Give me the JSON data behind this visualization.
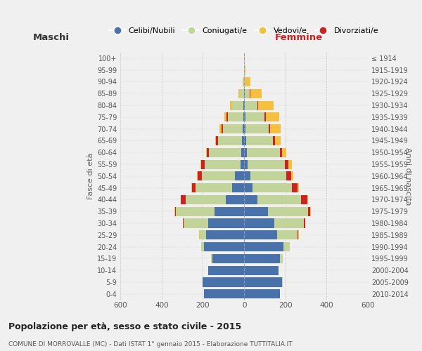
{
  "age_groups": [
    "0-4",
    "5-9",
    "10-14",
    "15-19",
    "20-24",
    "25-29",
    "30-34",
    "35-39",
    "40-44",
    "45-49",
    "50-54",
    "55-59",
    "60-64",
    "65-69",
    "70-74",
    "75-79",
    "80-84",
    "85-89",
    "90-94",
    "95-99",
    "100+"
  ],
  "birth_years": [
    "2010-2014",
    "2005-2009",
    "2000-2004",
    "1995-1999",
    "1990-1994",
    "1985-1989",
    "1980-1984",
    "1975-1979",
    "1970-1974",
    "1965-1969",
    "1960-1964",
    "1955-1959",
    "1950-1954",
    "1945-1949",
    "1940-1944",
    "1935-1939",
    "1930-1934",
    "1925-1929",
    "1920-1924",
    "1915-1919",
    "≤ 1914"
  ],
  "males": {
    "celibe": [
      195,
      200,
      175,
      155,
      195,
      185,
      175,
      145,
      90,
      60,
      45,
      18,
      15,
      10,
      8,
      5,
      3,
      2,
      0,
      0,
      0
    ],
    "coniugato": [
      0,
      2,
      0,
      5,
      15,
      30,
      120,
      185,
      195,
      175,
      160,
      172,
      155,
      115,
      95,
      75,
      55,
      20,
      5,
      2,
      0
    ],
    "vedovo": [
      0,
      0,
      0,
      0,
      0,
      2,
      0,
      2,
      2,
      2,
      5,
      5,
      5,
      5,
      10,
      12,
      10,
      5,
      2,
      0,
      0
    ],
    "divorziato": [
      0,
      0,
      0,
      0,
      0,
      2,
      2,
      5,
      22,
      18,
      20,
      18,
      10,
      12,
      8,
      5,
      0,
      0,
      0,
      0,
      0
    ]
  },
  "females": {
    "nubile": [
      175,
      185,
      165,
      175,
      190,
      160,
      145,
      115,
      65,
      40,
      30,
      15,
      12,
      10,
      8,
      5,
      3,
      2,
      0,
      0,
      0
    ],
    "coniugata": [
      0,
      2,
      2,
      12,
      30,
      100,
      145,
      195,
      210,
      190,
      175,
      182,
      162,
      130,
      110,
      95,
      60,
      25,
      5,
      2,
      0
    ],
    "vedova": [
      0,
      0,
      0,
      0,
      0,
      2,
      2,
      5,
      5,
      5,
      12,
      15,
      20,
      30,
      50,
      65,
      75,
      55,
      25,
      5,
      2
    ],
    "divorziata": [
      0,
      0,
      0,
      0,
      2,
      2,
      5,
      10,
      30,
      30,
      22,
      18,
      10,
      8,
      8,
      5,
      5,
      2,
      0,
      0,
      0
    ]
  },
  "colors": {
    "celibe": "#4a72aa",
    "coniugato": "#c2d49a",
    "vedovo": "#f5c040",
    "divorziato": "#cc2222"
  },
  "xlim": 600,
  "title": "Popolazione per età, sesso e stato civile - 2015",
  "subtitle": "COMUNE DI MORROVALLE (MC) - Dati ISTAT 1° gennaio 2015 - Elaborazione TUTTITALIA.IT",
  "xlabel_left": "Maschi",
  "xlabel_right": "Femmine",
  "ylabel_left": "Fasce di età",
  "ylabel_right": "Anni di nascita",
  "legend_labels": [
    "Celibi/Nubili",
    "Coniugati/e",
    "Vedovi/e",
    "Divorziati/e"
  ],
  "background_color": "#f0f0f0",
  "grid_color": "#cccccc"
}
